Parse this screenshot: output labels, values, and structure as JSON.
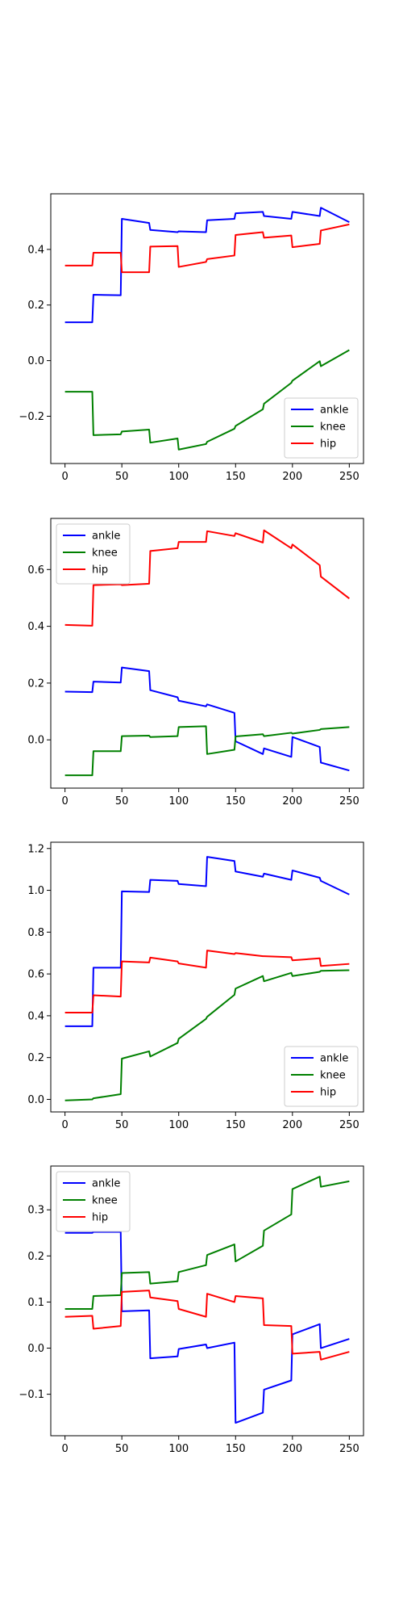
{
  "chart_data": [
    {
      "type": "line",
      "xticks": [
        0,
        50,
        100,
        150,
        200,
        250
      ],
      "yticks": [
        -0.2,
        0.0,
        0.2,
        0.4
      ],
      "xlim": [
        -12.5,
        262.5
      ],
      "ylim": [
        -0.37,
        0.6
      ],
      "legend": "lower-right",
      "series": [
        {
          "name": "ankle",
          "color": "#0000ff",
          "x": [
            0,
            24,
            25,
            49,
            50,
            74,
            75,
            99,
            100,
            124,
            125,
            149,
            150,
            174,
            175,
            199,
            200,
            224,
            225,
            250
          ],
          "y": [
            0.138,
            0.138,
            0.237,
            0.235,
            0.51,
            0.495,
            0.47,
            0.462,
            0.465,
            0.462,
            0.505,
            0.51,
            0.53,
            0.535,
            0.52,
            0.51,
            0.535,
            0.52,
            0.55,
            0.498
          ]
        },
        {
          "name": "knee",
          "color": "#008000",
          "x": [
            0,
            24,
            25,
            49,
            50,
            74,
            75,
            99,
            100,
            124,
            125,
            149,
            150,
            174,
            175,
            199,
            200,
            224,
            225,
            250
          ],
          "y": [
            -0.112,
            -0.112,
            -0.268,
            -0.265,
            -0.255,
            -0.248,
            -0.295,
            -0.28,
            -0.32,
            -0.3,
            -0.292,
            -0.245,
            -0.235,
            -0.175,
            -0.155,
            -0.08,
            -0.072,
            -0.002,
            -0.02,
            0.038
          ]
        },
        {
          "name": "hip",
          "color": "#ff0000",
          "x": [
            0,
            24,
            25,
            49,
            50,
            74,
            75,
            99,
            100,
            124,
            125,
            149,
            150,
            174,
            175,
            199,
            200,
            224,
            225,
            250
          ],
          "y": [
            0.342,
            0.342,
            0.388,
            0.388,
            0.318,
            0.318,
            0.41,
            0.412,
            0.337,
            0.355,
            0.365,
            0.378,
            0.452,
            0.462,
            0.442,
            0.45,
            0.408,
            0.42,
            0.468,
            0.49
          ]
        }
      ]
    },
    {
      "type": "line",
      "xticks": [
        0,
        50,
        100,
        150,
        200,
        250
      ],
      "yticks": [
        0.0,
        0.2,
        0.4,
        0.6
      ],
      "xlim": [
        -12.5,
        262.5
      ],
      "ylim": [
        -0.17,
        0.78
      ],
      "legend": "upper-left",
      "series": [
        {
          "name": "ankle",
          "color": "#0000ff",
          "x": [
            0,
            24,
            25,
            49,
            50,
            74,
            75,
            99,
            100,
            124,
            125,
            149,
            150,
            174,
            175,
            199,
            200,
            224,
            225,
            250
          ],
          "y": [
            0.17,
            0.168,
            0.205,
            0.202,
            0.255,
            0.242,
            0.175,
            0.15,
            0.138,
            0.118,
            0.125,
            0.095,
            -0.005,
            -0.05,
            -0.03,
            -0.06,
            0.01,
            -0.025,
            -0.08,
            -0.108
          ]
        },
        {
          "name": "knee",
          "color": "#008000",
          "x": [
            0,
            24,
            25,
            49,
            50,
            74,
            75,
            99,
            100,
            124,
            125,
            149,
            150,
            174,
            175,
            199,
            200,
            224,
            225,
            250
          ],
          "y": [
            -0.125,
            -0.125,
            -0.04,
            -0.04,
            0.013,
            0.015,
            0.01,
            0.013,
            0.045,
            0.048,
            -0.05,
            -0.035,
            0.012,
            0.02,
            0.013,
            0.025,
            0.022,
            0.035,
            0.038,
            0.045
          ]
        },
        {
          "name": "hip",
          "color": "#ff0000",
          "x": [
            0,
            24,
            25,
            49,
            50,
            74,
            75,
            99,
            100,
            124,
            125,
            149,
            150,
            174,
            175,
            199,
            200,
            224,
            225,
            250
          ],
          "y": [
            0.405,
            0.402,
            0.545,
            0.548,
            0.545,
            0.55,
            0.665,
            0.675,
            0.697,
            0.697,
            0.735,
            0.718,
            0.728,
            0.695,
            0.738,
            0.675,
            0.688,
            0.615,
            0.575,
            0.498
          ]
        }
      ]
    },
    {
      "type": "line",
      "xticks": [
        0,
        50,
        100,
        150,
        200,
        250
      ],
      "yticks": [
        0.0,
        0.2,
        0.4,
        0.6,
        0.8,
        1.0,
        1.2
      ],
      "xlim": [
        -12.5,
        262.5
      ],
      "ylim": [
        -0.06,
        1.23
      ],
      "legend": "lower-right",
      "series": [
        {
          "name": "ankle",
          "color": "#0000ff",
          "x": [
            0,
            24,
            25,
            49,
            50,
            74,
            75,
            99,
            100,
            124,
            125,
            149,
            150,
            174,
            175,
            199,
            200,
            224,
            225,
            250
          ],
          "y": [
            0.35,
            0.35,
            0.63,
            0.63,
            0.995,
            0.992,
            1.05,
            1.045,
            1.03,
            1.02,
            1.16,
            1.14,
            1.09,
            1.065,
            1.08,
            1.05,
            1.095,
            1.06,
            1.045,
            0.98
          ]
        },
        {
          "name": "knee",
          "color": "#008000",
          "x": [
            0,
            24,
            25,
            49,
            50,
            74,
            75,
            99,
            100,
            124,
            125,
            149,
            150,
            174,
            175,
            199,
            200,
            224,
            225,
            250
          ],
          "y": [
            -0.005,
            0.0,
            0.005,
            0.025,
            0.195,
            0.23,
            0.205,
            0.27,
            0.29,
            0.385,
            0.395,
            0.5,
            0.53,
            0.59,
            0.565,
            0.605,
            0.59,
            0.61,
            0.615,
            0.618
          ]
        },
        {
          "name": "hip",
          "color": "#ff0000",
          "x": [
            0,
            24,
            25,
            49,
            50,
            74,
            75,
            99,
            100,
            124,
            125,
            149,
            150,
            174,
            175,
            199,
            200,
            224,
            225,
            250
          ],
          "y": [
            0.415,
            0.415,
            0.498,
            0.492,
            0.66,
            0.655,
            0.678,
            0.66,
            0.65,
            0.63,
            0.712,
            0.695,
            0.7,
            0.685,
            0.685,
            0.68,
            0.665,
            0.675,
            0.638,
            0.648
          ]
        }
      ]
    },
    {
      "type": "line",
      "xticks": [
        0,
        50,
        100,
        150,
        200,
        250
      ],
      "yticks": [
        -0.1,
        0.0,
        0.1,
        0.2,
        0.3
      ],
      "xlim": [
        -12.5,
        262.5
      ],
      "ylim": [
        -0.19,
        0.395
      ],
      "legend": "upper-left",
      "series": [
        {
          "name": "ankle",
          "color": "#0000ff",
          "x": [
            0,
            24,
            25,
            49,
            50,
            74,
            75,
            99,
            100,
            124,
            125,
            149,
            150,
            174,
            175,
            199,
            200,
            224,
            225,
            250
          ],
          "y": [
            0.25,
            0.25,
            0.252,
            0.252,
            0.08,
            0.082,
            -0.022,
            -0.018,
            -0.002,
            0.008,
            0.0,
            0.012,
            -0.162,
            -0.14,
            -0.09,
            -0.07,
            0.03,
            0.052,
            0.0,
            0.02
          ]
        },
        {
          "name": "knee",
          "color": "#008000",
          "x": [
            0,
            24,
            25,
            49,
            50,
            74,
            75,
            99,
            100,
            124,
            125,
            149,
            150,
            174,
            175,
            199,
            200,
            224,
            225,
            250
          ],
          "y": [
            0.085,
            0.085,
            0.113,
            0.115,
            0.163,
            0.165,
            0.14,
            0.145,
            0.165,
            0.18,
            0.202,
            0.225,
            0.188,
            0.222,
            0.255,
            0.29,
            0.345,
            0.372,
            0.35,
            0.362
          ]
        },
        {
          "name": "hip",
          "color": "#ff0000",
          "x": [
            0,
            24,
            25,
            49,
            50,
            74,
            75,
            99,
            100,
            124,
            125,
            149,
            150,
            174,
            175,
            199,
            200,
            224,
            225,
            250
          ],
          "y": [
            0.068,
            0.07,
            0.042,
            0.048,
            0.122,
            0.125,
            0.11,
            0.102,
            0.085,
            0.068,
            0.118,
            0.1,
            0.113,
            0.108,
            0.05,
            0.048,
            -0.012,
            -0.008,
            -0.025,
            -0.008
          ]
        }
      ]
    }
  ]
}
